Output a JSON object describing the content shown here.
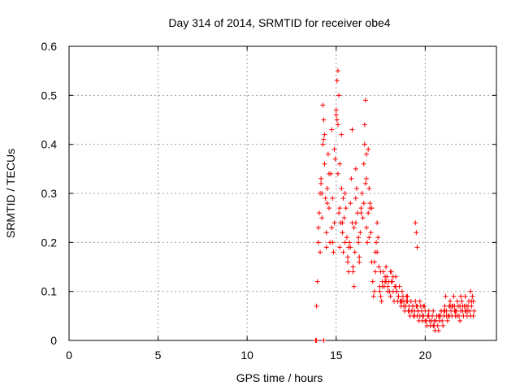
{
  "chart_data": {
    "type": "scatter",
    "title": "Day 314 of 2014, SRMTID for receiver obe4",
    "xlabel": "GPS time / hours",
    "ylabel": "SRMTID / TECUs",
    "xlim": [
      0,
      24
    ],
    "ylim": [
      0,
      0.6
    ],
    "xticks": [
      0,
      5,
      10,
      15,
      20
    ],
    "yticks": [
      0,
      0.1,
      0.2,
      0.3,
      0.4,
      0.5,
      0.6
    ],
    "xtick_labels": [
      "0",
      "5",
      "10",
      "15",
      "20"
    ],
    "ytick_labels": [
      "0",
      "0.1",
      "0.2",
      "0.3",
      "0.4",
      "0.5",
      "0.6"
    ],
    "grid": true,
    "marker": "+",
    "color": "#ff0000",
    "series": [
      {
        "name": "obe4",
        "x": [
          13.85,
          13.9,
          14.3,
          13.9,
          13.95,
          14.0,
          14.05,
          14.1,
          14.1,
          14.15,
          14.2,
          14.25,
          14.3,
          14.35,
          14.4,
          14.45,
          14.5,
          14.55,
          14.6,
          14.65,
          14.7,
          14.75,
          14.8,
          14.85,
          14.9,
          14.95,
          15.0,
          15.05,
          15.1,
          15.15,
          15.2,
          15.25,
          15.3,
          15.35,
          15.4,
          15.45,
          15.5,
          15.55,
          15.6,
          15.65,
          15.7,
          15.75,
          15.8,
          15.85,
          15.9,
          15.95,
          16.0,
          16.05,
          16.1,
          16.15,
          16.2,
          16.25,
          16.3,
          16.35,
          16.4,
          16.45,
          16.5,
          16.55,
          16.6,
          16.65,
          16.7,
          16.75,
          16.8,
          16.85,
          16.9,
          16.95,
          17.0,
          17.05,
          17.1,
          17.15,
          17.2,
          17.25,
          17.3,
          17.35,
          17.4,
          17.45,
          17.5,
          17.55,
          17.6,
          17.65,
          17.7,
          17.75,
          17.8,
          17.85,
          17.9,
          17.95,
          18.0,
          18.05,
          18.1,
          18.15,
          18.2,
          18.25,
          18.3,
          18.35,
          18.4,
          18.45,
          18.5,
          18.55,
          18.6,
          18.65,
          18.7,
          18.75,
          18.8,
          18.85,
          18.9,
          18.95,
          19.0,
          19.05,
          19.1,
          19.15,
          19.2,
          19.25,
          19.3,
          19.35,
          19.4,
          19.45,
          19.5,
          19.55,
          19.6,
          19.65,
          19.7,
          19.75,
          19.8,
          19.85,
          19.9,
          19.95,
          20.0,
          20.05,
          20.1,
          20.15,
          20.2,
          20.25,
          20.3,
          20.35,
          20.4,
          20.45,
          20.5,
          20.55,
          20.6,
          20.65,
          20.7,
          20.75,
          20.8,
          20.85,
          20.9,
          20.95,
          21.0,
          21.05,
          21.1,
          21.15,
          21.2,
          21.25,
          21.3,
          21.35,
          21.4,
          21.45,
          21.5,
          21.55,
          21.6,
          21.65,
          21.7,
          21.75,
          21.8,
          21.85,
          21.9,
          21.95,
          22.0,
          22.05,
          22.1,
          22.15,
          22.2,
          22.25,
          22.3,
          22.35,
          22.4,
          22.45,
          22.5,
          22.55,
          22.6,
          22.65,
          22.7,
          22.75,
          14.2,
          14.5,
          14.8,
          15.1,
          15.4,
          15.7,
          16.0,
          16.3,
          16.6,
          16.9,
          17.2,
          17.5,
          17.8,
          18.1,
          18.4,
          18.7,
          19.0,
          19.3,
          19.6,
          19.9,
          20.2,
          20.5,
          20.8,
          21.1,
          21.4,
          21.7,
          22.0,
          22.3,
          22.6,
          14.0,
          14.3,
          14.6,
          14.9,
          15.2,
          15.5,
          15.8,
          16.1,
          16.4,
          16.7,
          17.0,
          17.3,
          17.6,
          17.9,
          18.2,
          18.5,
          18.8,
          19.1,
          19.4,
          19.7,
          20.0,
          20.3,
          20.6,
          20.9,
          21.2,
          21.5,
          21.8,
          22.1,
          22.4,
          22.7,
          14.15,
          14.45,
          14.75,
          15.05,
          15.35,
          15.65,
          15.95,
          16.25,
          16.55,
          16.85,
          17.15,
          17.45,
          17.75,
          18.05,
          18.35,
          18.65,
          18.95,
          19.25,
          19.55,
          19.85,
          20.15,
          20.45,
          20.75,
          21.05,
          21.35,
          21.65,
          21.95,
          22.25,
          22.55,
          15.0,
          15.1,
          15.15,
          15.3,
          16.65,
          16.7,
          19.45,
          19.5,
          19.55,
          16.8,
          14.25,
          15.2,
          14.35,
          15.9,
          16.1
        ],
        "y": [
          0.0,
          0.0,
          0.0,
          0.07,
          0.12,
          0.2,
          0.26,
          0.18,
          0.3,
          0.33,
          0.25,
          0.4,
          0.45,
          0.36,
          0.29,
          0.22,
          0.31,
          0.38,
          0.27,
          0.2,
          0.34,
          0.43,
          0.29,
          0.18,
          0.24,
          0.37,
          0.46,
          0.53,
          0.34,
          0.26,
          0.19,
          0.24,
          0.31,
          0.22,
          0.18,
          0.25,
          0.3,
          0.27,
          0.21,
          0.16,
          0.14,
          0.2,
          0.28,
          0.33,
          0.24,
          0.15,
          0.11,
          0.18,
          0.24,
          0.31,
          0.26,
          0.2,
          0.17,
          0.22,
          0.27,
          0.3,
          0.25,
          0.36,
          0.44,
          0.32,
          0.23,
          0.2,
          0.26,
          0.31,
          0.28,
          0.22,
          0.16,
          0.12,
          0.09,
          0.1,
          0.14,
          0.2,
          0.24,
          0.21,
          0.15,
          0.11,
          0.09,
          0.08,
          0.12,
          0.14,
          0.11,
          0.13,
          0.15,
          0.13,
          0.11,
          0.12,
          0.1,
          0.09,
          0.14,
          0.12,
          0.1,
          0.08,
          0.11,
          0.13,
          0.1,
          0.08,
          0.09,
          0.11,
          0.08,
          0.07,
          0.1,
          0.09,
          0.08,
          0.06,
          0.07,
          0.09,
          0.08,
          0.06,
          0.07,
          0.05,
          0.08,
          0.06,
          0.07,
          0.05,
          0.06,
          0.08,
          0.07,
          0.05,
          0.06,
          0.04,
          0.05,
          0.07,
          0.06,
          0.04,
          0.05,
          0.07,
          0.06,
          0.04,
          0.03,
          0.05,
          0.06,
          0.04,
          0.03,
          0.04,
          0.05,
          0.06,
          0.03,
          0.02,
          0.04,
          0.05,
          0.03,
          0.02,
          0.04,
          0.05,
          0.06,
          0.04,
          0.03,
          0.05,
          0.07,
          0.09,
          0.06,
          0.04,
          0.05,
          0.07,
          0.08,
          0.06,
          0.05,
          0.07,
          0.09,
          0.07,
          0.05,
          0.06,
          0.08,
          0.07,
          0.05,
          0.04,
          0.06,
          0.08,
          0.06,
          0.05,
          0.07,
          0.09,
          0.06,
          0.05,
          0.07,
          0.08,
          0.06,
          0.05,
          0.07,
          0.09,
          0.08,
          0.06,
          0.3,
          0.28,
          0.2,
          0.44,
          0.29,
          0.19,
          0.23,
          0.16,
          0.4,
          0.27,
          0.18,
          0.14,
          0.12,
          0.12,
          0.1,
          0.08,
          0.09,
          0.07,
          0.06,
          0.07,
          0.05,
          0.04,
          0.05,
          0.06,
          0.07,
          0.06,
          0.09,
          0.07,
          0.08,
          0.23,
          0.41,
          0.34,
          0.39,
          0.27,
          0.2,
          0.19,
          0.29,
          0.26,
          0.33,
          0.27,
          0.18,
          0.11,
          0.1,
          0.13,
          0.09,
          0.07,
          0.06,
          0.05,
          0.08,
          0.04,
          0.03,
          0.04,
          0.06,
          0.05,
          0.07,
          0.05,
          0.07,
          0.06,
          0.05,
          0.32,
          0.19,
          0.23,
          0.45,
          0.24,
          0.17,
          0.14,
          0.21,
          0.28,
          0.21,
          0.16,
          0.1,
          0.12,
          0.14,
          0.11,
          0.08,
          0.08,
          0.06,
          0.07,
          0.05,
          0.05,
          0.03,
          0.05,
          0.06,
          0.05,
          0.06,
          0.07,
          0.06,
          0.1,
          0.47,
          0.55,
          0.5,
          0.42,
          0.49,
          0.38,
          0.24,
          0.22,
          0.19,
          0.39,
          0.48,
          0.36,
          0.42,
          0.43,
          0.35
        ]
      }
    ]
  }
}
